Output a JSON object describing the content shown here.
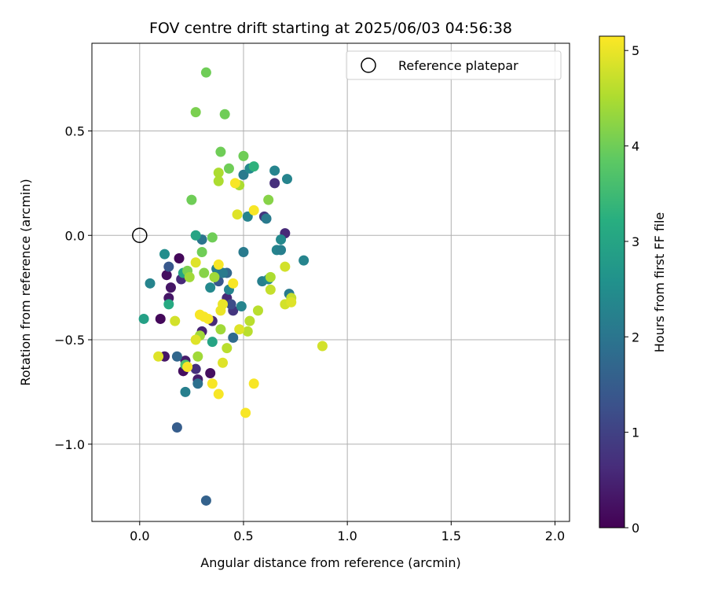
{
  "chart_data": {
    "type": "scatter",
    "title": "FOV centre drift starting at 2025/06/03 04:56:38",
    "xlabel": "Angular distance from reference (arcmin)",
    "ylabel": "Rotation from reference (arcmin)",
    "xlim": [
      -0.23,
      2.07
    ],
    "ylim": [
      -1.37,
      0.92
    ],
    "x_ticks": [
      0.0,
      0.5,
      1.0,
      1.5,
      2.0
    ],
    "x_tick_labels": [
      "0.0",
      "0.5",
      "1.0",
      "1.5",
      "2.0"
    ],
    "y_ticks": [
      -1.0,
      -0.5,
      0.0,
      0.5
    ],
    "y_tick_labels": [
      "−1.0",
      "−0.5",
      "0.0",
      "0.5"
    ],
    "grid": true,
    "legend": {
      "placement": "top-right",
      "entries": [
        {
          "label": "Reference platepar",
          "marker": "open-circle"
        }
      ]
    },
    "reference_point": {
      "x": 0.0,
      "y": 0.0
    },
    "colorbar": {
      "label": "Hours from first FF file",
      "min": 0,
      "max": 5.15,
      "ticks": [
        0,
        1,
        2,
        3,
        4,
        5
      ],
      "tick_labels": [
        "0",
        "1",
        "2",
        "3",
        "4",
        "5"
      ],
      "colormap": "viridis"
    },
    "points": [
      {
        "x": 0.1,
        "y": -0.4,
        "c": 0.1
      },
      {
        "x": 0.12,
        "y": -0.58,
        "c": 0.3
      },
      {
        "x": 0.13,
        "y": -0.19,
        "c": 0.2
      },
      {
        "x": 0.14,
        "y": -0.3,
        "c": 0.3
      },
      {
        "x": 0.15,
        "y": -0.25,
        "c": 0.3
      },
      {
        "x": 0.19,
        "y": -0.11,
        "c": 0.1
      },
      {
        "x": 0.2,
        "y": -0.21,
        "c": 0.6
      },
      {
        "x": 0.21,
        "y": -0.65,
        "c": 0.2
      },
      {
        "x": 0.22,
        "y": -0.6,
        "c": 0.4
      },
      {
        "x": 0.27,
        "y": -0.64,
        "c": 0.7
      },
      {
        "x": 0.28,
        "y": -0.69,
        "c": 0.4
      },
      {
        "x": 0.3,
        "y": -0.46,
        "c": 0.5
      },
      {
        "x": 0.34,
        "y": -0.66,
        "c": 0.2
      },
      {
        "x": 0.35,
        "y": -0.41,
        "c": 0.6
      },
      {
        "x": 0.42,
        "y": -0.3,
        "c": 0.6
      },
      {
        "x": 0.45,
        "y": -0.36,
        "c": 0.8
      },
      {
        "x": 0.6,
        "y": 0.09,
        "c": 0.8
      },
      {
        "x": 0.65,
        "y": 0.25,
        "c": 0.7
      },
      {
        "x": 0.7,
        "y": 0.01,
        "c": 0.6
      },
      {
        "x": 0.14,
        "y": -0.15,
        "c": 1.4
      },
      {
        "x": 0.18,
        "y": -0.92,
        "c": 1.5
      },
      {
        "x": 0.18,
        "y": -0.58,
        "c": 1.7
      },
      {
        "x": 0.28,
        "y": -0.71,
        "c": 1.9
      },
      {
        "x": 0.32,
        "y": -1.27,
        "c": 1.6
      },
      {
        "x": 0.38,
        "y": -0.22,
        "c": 1.4
      },
      {
        "x": 0.42,
        "y": -0.18,
        "c": 1.7
      },
      {
        "x": 0.45,
        "y": -0.49,
        "c": 1.8
      },
      {
        "x": 0.44,
        "y": -0.33,
        "c": 1.2
      },
      {
        "x": 0.3,
        "y": -0.02,
        "c": 2.0
      },
      {
        "x": 0.05,
        "y": -0.23,
        "c": 2.3
      },
      {
        "x": 0.12,
        "y": -0.09,
        "c": 2.5
      },
      {
        "x": 0.22,
        "y": -0.75,
        "c": 2.2
      },
      {
        "x": 0.34,
        "y": -0.25,
        "c": 2.4
      },
      {
        "x": 0.37,
        "y": -0.16,
        "c": 2.2
      },
      {
        "x": 0.4,
        "y": -0.18,
        "c": 2.1
      },
      {
        "x": 0.43,
        "y": -0.26,
        "c": 2.3
      },
      {
        "x": 0.49,
        "y": -0.34,
        "c": 2.3
      },
      {
        "x": 0.5,
        "y": -0.08,
        "c": 2.1
      },
      {
        "x": 0.5,
        "y": 0.29,
        "c": 2.1
      },
      {
        "x": 0.52,
        "y": 0.09,
        "c": 2.3
      },
      {
        "x": 0.53,
        "y": 0.32,
        "c": 2.4
      },
      {
        "x": 0.59,
        "y": -0.22,
        "c": 2.2
      },
      {
        "x": 0.61,
        "y": 0.08,
        "c": 2.1
      },
      {
        "x": 0.62,
        "y": -0.21,
        "c": 2.4
      },
      {
        "x": 0.65,
        "y": 0.31,
        "c": 2.3
      },
      {
        "x": 0.66,
        "y": -0.07,
        "c": 2.3
      },
      {
        "x": 0.68,
        "y": -0.02,
        "c": 2.4
      },
      {
        "x": 0.68,
        "y": -0.07,
        "c": 2.2
      },
      {
        "x": 0.71,
        "y": 0.27,
        "c": 2.3
      },
      {
        "x": 0.72,
        "y": -0.28,
        "c": 2.1
      },
      {
        "x": 0.79,
        "y": -0.12,
        "c": 2.3
      },
      {
        "x": 0.02,
        "y": -0.4,
        "c": 2.9
      },
      {
        "x": 0.14,
        "y": -0.33,
        "c": 3.1
      },
      {
        "x": 0.21,
        "y": -0.18,
        "c": 3.0
      },
      {
        "x": 0.27,
        "y": 0.0,
        "c": 3.0
      },
      {
        "x": 0.35,
        "y": -0.51,
        "c": 3.0
      },
      {
        "x": 0.55,
        "y": 0.33,
        "c": 3.3
      },
      {
        "x": 0.22,
        "y": -0.62,
        "c": 3.7
      },
      {
        "x": 0.25,
        "y": 0.17,
        "c": 4.0
      },
      {
        "x": 0.27,
        "y": 0.59,
        "c": 4.1
      },
      {
        "x": 0.32,
        "y": 0.78,
        "c": 4.0
      },
      {
        "x": 0.39,
        "y": 0.4,
        "c": 4.0
      },
      {
        "x": 0.41,
        "y": 0.58,
        "c": 4.0
      },
      {
        "x": 0.43,
        "y": 0.32,
        "c": 4.0
      },
      {
        "x": 0.5,
        "y": 0.38,
        "c": 4.0
      },
      {
        "x": 0.3,
        "y": -0.08,
        "c": 4.0
      },
      {
        "x": 0.35,
        "y": -0.01,
        "c": 4.0
      },
      {
        "x": 0.62,
        "y": 0.17,
        "c": 4.2
      },
      {
        "x": 0.31,
        "y": -0.18,
        "c": 4.2
      },
      {
        "x": 0.23,
        "y": -0.17,
        "c": 4.1
      },
      {
        "x": 0.24,
        "y": -0.2,
        "c": 4.4
      },
      {
        "x": 0.28,
        "y": -0.58,
        "c": 4.4
      },
      {
        "x": 0.29,
        "y": -0.48,
        "c": 4.4
      },
      {
        "x": 0.38,
        "y": 0.3,
        "c": 4.5
      },
      {
        "x": 0.38,
        "y": 0.26,
        "c": 4.5
      },
      {
        "x": 0.36,
        "y": -0.2,
        "c": 4.4
      },
      {
        "x": 0.39,
        "y": -0.45,
        "c": 4.4
      },
      {
        "x": 0.42,
        "y": -0.54,
        "c": 4.6
      },
      {
        "x": 0.48,
        "y": 0.24,
        "c": 4.5
      },
      {
        "x": 0.52,
        "y": -0.46,
        "c": 4.6
      },
      {
        "x": 0.53,
        "y": -0.41,
        "c": 4.6
      },
      {
        "x": 0.57,
        "y": -0.36,
        "c": 4.6
      },
      {
        "x": 0.63,
        "y": -0.2,
        "c": 4.5
      },
      {
        "x": 0.63,
        "y": -0.26,
        "c": 4.7
      },
      {
        "x": 0.7,
        "y": -0.15,
        "c": 4.8
      },
      {
        "x": 0.7,
        "y": -0.33,
        "c": 4.8
      },
      {
        "x": 0.73,
        "y": -0.3,
        "c": 4.7
      },
      {
        "x": 0.88,
        "y": -0.53,
        "c": 4.8
      },
      {
        "x": 0.09,
        "y": -0.58,
        "c": 4.9
      },
      {
        "x": 0.17,
        "y": -0.41,
        "c": 4.8
      },
      {
        "x": 0.27,
        "y": -0.13,
        "c": 4.9
      },
      {
        "x": 0.27,
        "y": -0.5,
        "c": 4.9
      },
      {
        "x": 0.4,
        "y": -0.61,
        "c": 4.9
      },
      {
        "x": 0.47,
        "y": 0.1,
        "c": 4.9
      },
      {
        "x": 0.48,
        "y": -0.45,
        "c": 4.9
      },
      {
        "x": 0.73,
        "y": -0.32,
        "c": 4.9
      },
      {
        "x": 0.23,
        "y": -0.63,
        "c": 5.1
      },
      {
        "x": 0.29,
        "y": -0.38,
        "c": 5.1
      },
      {
        "x": 0.31,
        "y": -0.39,
        "c": 5.1
      },
      {
        "x": 0.33,
        "y": -0.4,
        "c": 5.1
      },
      {
        "x": 0.35,
        "y": -0.71,
        "c": 5.1
      },
      {
        "x": 0.38,
        "y": -0.76,
        "c": 5.1
      },
      {
        "x": 0.38,
        "y": -0.14,
        "c": 5.1
      },
      {
        "x": 0.39,
        "y": -0.36,
        "c": 5.0
      },
      {
        "x": 0.4,
        "y": -0.33,
        "c": 5.0
      },
      {
        "x": 0.46,
        "y": 0.25,
        "c": 5.1
      },
      {
        "x": 0.45,
        "y": -0.23,
        "c": 5.1
      },
      {
        "x": 0.51,
        "y": -0.85,
        "c": 5.1
      },
      {
        "x": 0.55,
        "y": 0.12,
        "c": 5.1
      },
      {
        "x": 0.55,
        "y": -0.71,
        "c": 5.1
      }
    ]
  }
}
